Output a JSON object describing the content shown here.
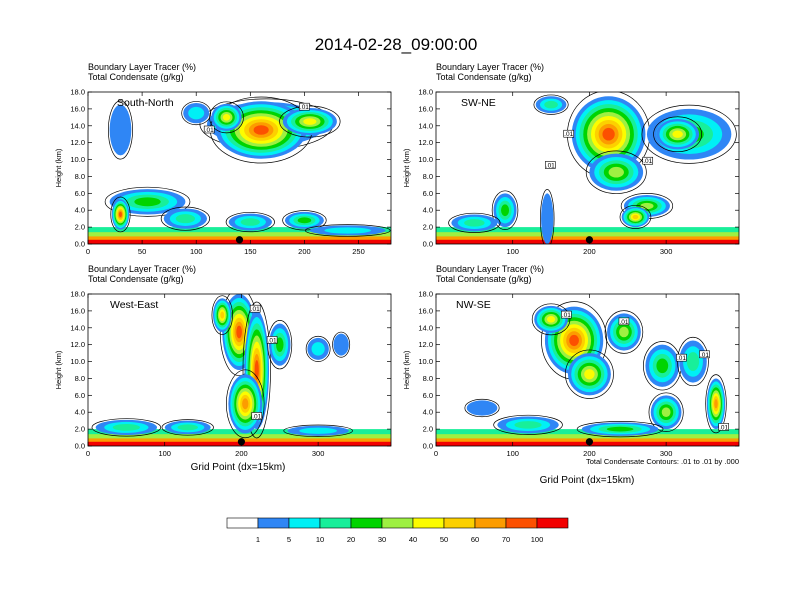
{
  "figure": {
    "title": "2014-02-28_09:00:00",
    "header_line1": "Boundary Layer Tracer    (%)",
    "header_line2": "Total Condensate    (g/kg)",
    "xlabel": "Grid Point (dx=15km)",
    "ylabel": "Height (km)",
    "contour_note": "Total Condensate Contours: .01 to .01 by .000",
    "contour_label": ".01"
  },
  "chart_data": {
    "type": "heatmap",
    "variable": "Boundary Layer Tracer (%)",
    "overlay": "Total Condensate contours (g/kg)",
    "y_ticks": [
      "0.0",
      "2.0",
      "4.0",
      "6.0",
      "8.0",
      "10.0",
      "12.0",
      "14.0",
      "16.0",
      "18.0"
    ],
    "ylim": [
      0,
      18
    ],
    "colorbar": {
      "labels": [
        "1",
        "5",
        "10",
        "20",
        "30",
        "40",
        "50",
        "60",
        "70",
        "100"
      ],
      "colors": [
        "#ffffff",
        "#2f86f5",
        "#00f0f5",
        "#18ef9a",
        "#00d400",
        "#9ef042",
        "#fcfc00",
        "#fcd000",
        "#fc9c00",
        "#fc5000",
        "#f20000"
      ]
    },
    "panels": [
      {
        "name": "South-North",
        "xlim": [
          0,
          280
        ],
        "x_ticks": [
          0,
          50,
          100,
          150,
          200,
          250
        ],
        "marker_x": 140,
        "blobs": [
          {
            "cx": 165,
            "cy": 14.2,
            "rx": 55,
            "ry": 2.6,
            "v": 9
          },
          {
            "cx": 160,
            "cy": 13.5,
            "rx": 42,
            "ry": 3.4,
            "v": 9
          },
          {
            "cx": 128,
            "cy": 15.0,
            "rx": 14,
            "ry": 1.6,
            "v": 6
          },
          {
            "cx": 205,
            "cy": 14.5,
            "rx": 25,
            "ry": 1.6,
            "v": 6
          },
          {
            "cx": 100,
            "cy": 15.5,
            "rx": 12,
            "ry": 1.2,
            "v": 2
          },
          {
            "cx": 30,
            "cy": 13.5,
            "rx": 10,
            "ry": 3.0,
            "v": 1
          },
          {
            "cx": 55,
            "cy": 5.0,
            "rx": 35,
            "ry": 1.5,
            "v": 4
          },
          {
            "cx": 30,
            "cy": 3.5,
            "rx": 8,
            "ry": 1.8,
            "v": 9
          },
          {
            "cx": 90,
            "cy": 3.0,
            "rx": 20,
            "ry": 1.2,
            "v": 3
          },
          {
            "cx": 150,
            "cy": 2.6,
            "rx": 20,
            "ry": 1.0,
            "v": 3
          },
          {
            "cx": 200,
            "cy": 2.8,
            "rx": 18,
            "ry": 1.0,
            "v": 4
          },
          {
            "cx": 240,
            "cy": 1.6,
            "rx": 35,
            "ry": 0.6,
            "v": 2
          }
        ],
        "contour_boxes": [
          {
            "x": 200,
            "y": 16.2
          },
          {
            "x": 112,
            "y": 13.5
          }
        ]
      },
      {
        "name": "SW-NE",
        "xlim": [
          0,
          395
        ],
        "x_ticks": [
          100,
          200,
          300
        ],
        "marker_x": 200,
        "blobs": [
          {
            "cx": 225,
            "cy": 13.0,
            "rx": 48,
            "ry": 4.5,
            "v": 9
          },
          {
            "cx": 235,
            "cy": 8.5,
            "rx": 35,
            "ry": 2.2,
            "v": 5
          },
          {
            "cx": 330,
            "cy": 13.0,
            "rx": 55,
            "ry": 3.0,
            "v": 4
          },
          {
            "cx": 315,
            "cy": 13.0,
            "rx": 28,
            "ry": 1.8,
            "v": 6
          },
          {
            "cx": 150,
            "cy": 16.5,
            "rx": 20,
            "ry": 1.0,
            "v": 3
          },
          {
            "cx": 275,
            "cy": 4.5,
            "rx": 30,
            "ry": 1.3,
            "v": 5
          },
          {
            "cx": 260,
            "cy": 3.2,
            "rx": 18,
            "ry": 1.2,
            "v": 7
          },
          {
            "cx": 90,
            "cy": 4.0,
            "rx": 15,
            "ry": 2.0,
            "v": 4
          },
          {
            "cx": 145,
            "cy": 3.0,
            "rx": 8,
            "ry": 3.0,
            "v": 1
          },
          {
            "cx": 50,
            "cy": 2.5,
            "rx": 30,
            "ry": 1.0,
            "v": 3
          }
        ],
        "contour_boxes": [
          {
            "x": 173,
            "y": 13.0
          },
          {
            "x": 149,
            "y": 9.3
          },
          {
            "x": 276,
            "y": 9.8
          }
        ]
      },
      {
        "name": "West-East",
        "xlim": [
          0,
          395
        ],
        "x_ticks": [
          0,
          100,
          200,
          300
        ],
        "marker_x": 200,
        "blobs": [
          {
            "cx": 197,
            "cy": 13.5,
            "rx": 22,
            "ry": 4.5,
            "v": 9
          },
          {
            "cx": 220,
            "cy": 9.0,
            "rx": 16,
            "ry": 7.0,
            "v": 9
          },
          {
            "cx": 205,
            "cy": 5.0,
            "rx": 22,
            "ry": 3.5,
            "v": 8
          },
          {
            "cx": 250,
            "cy": 12.0,
            "rx": 14,
            "ry": 2.5,
            "v": 4
          },
          {
            "cx": 175,
            "cy": 15.5,
            "rx": 12,
            "ry": 2.0,
            "v": 7
          },
          {
            "cx": 300,
            "cy": 11.5,
            "rx": 14,
            "ry": 1.3,
            "v": 2
          },
          {
            "cx": 330,
            "cy": 12.0,
            "rx": 10,
            "ry": 1.3,
            "v": 1
          },
          {
            "cx": 50,
            "cy": 2.2,
            "rx": 40,
            "ry": 0.9,
            "v": 3
          },
          {
            "cx": 130,
            "cy": 2.2,
            "rx": 30,
            "ry": 0.8,
            "v": 3
          },
          {
            "cx": 300,
            "cy": 1.8,
            "rx": 40,
            "ry": 0.6,
            "v": 2
          }
        ],
        "contour_boxes": [
          {
            "x": 218,
            "y": 16.2
          },
          {
            "x": 240,
            "y": 12.5
          },
          {
            "x": 220,
            "y": 3.5
          }
        ]
      },
      {
        "name": "NW-SE",
        "xlim": [
          0,
          395
        ],
        "x_ticks": [
          0,
          100,
          200,
          300
        ],
        "marker_x": 200,
        "blobs": [
          {
            "cx": 180,
            "cy": 12.5,
            "rx": 38,
            "ry": 4.0,
            "v": 9
          },
          {
            "cx": 200,
            "cy": 8.5,
            "rx": 28,
            "ry": 2.5,
            "v": 6
          },
          {
            "cx": 150,
            "cy": 15.0,
            "rx": 22,
            "ry": 1.6,
            "v": 6
          },
          {
            "cx": 245,
            "cy": 13.5,
            "rx": 22,
            "ry": 2.2,
            "v": 5
          },
          {
            "cx": 295,
            "cy": 9.5,
            "rx": 22,
            "ry": 2.5,
            "v": 4
          },
          {
            "cx": 335,
            "cy": 10.0,
            "rx": 18,
            "ry": 2.5,
            "v": 3
          },
          {
            "cx": 365,
            "cy": 5.0,
            "rx": 12,
            "ry": 3.0,
            "v": 8
          },
          {
            "cx": 300,
            "cy": 4.0,
            "rx": 20,
            "ry": 2.0,
            "v": 5
          },
          {
            "cx": 60,
            "cy": 4.5,
            "rx": 20,
            "ry": 0.9,
            "v": 1
          },
          {
            "cx": 120,
            "cy": 2.5,
            "rx": 40,
            "ry": 1.0,
            "v": 3
          },
          {
            "cx": 240,
            "cy": 2.0,
            "rx": 50,
            "ry": 0.8,
            "v": 4
          }
        ],
        "contour_boxes": [
          {
            "x": 170,
            "y": 15.5
          },
          {
            "x": 245,
            "y": 14.7
          },
          {
            "x": 320,
            "y": 10.4
          },
          {
            "x": 350,
            "y": 10.8
          },
          {
            "x": 375,
            "y": 2.2
          }
        ]
      }
    ]
  }
}
